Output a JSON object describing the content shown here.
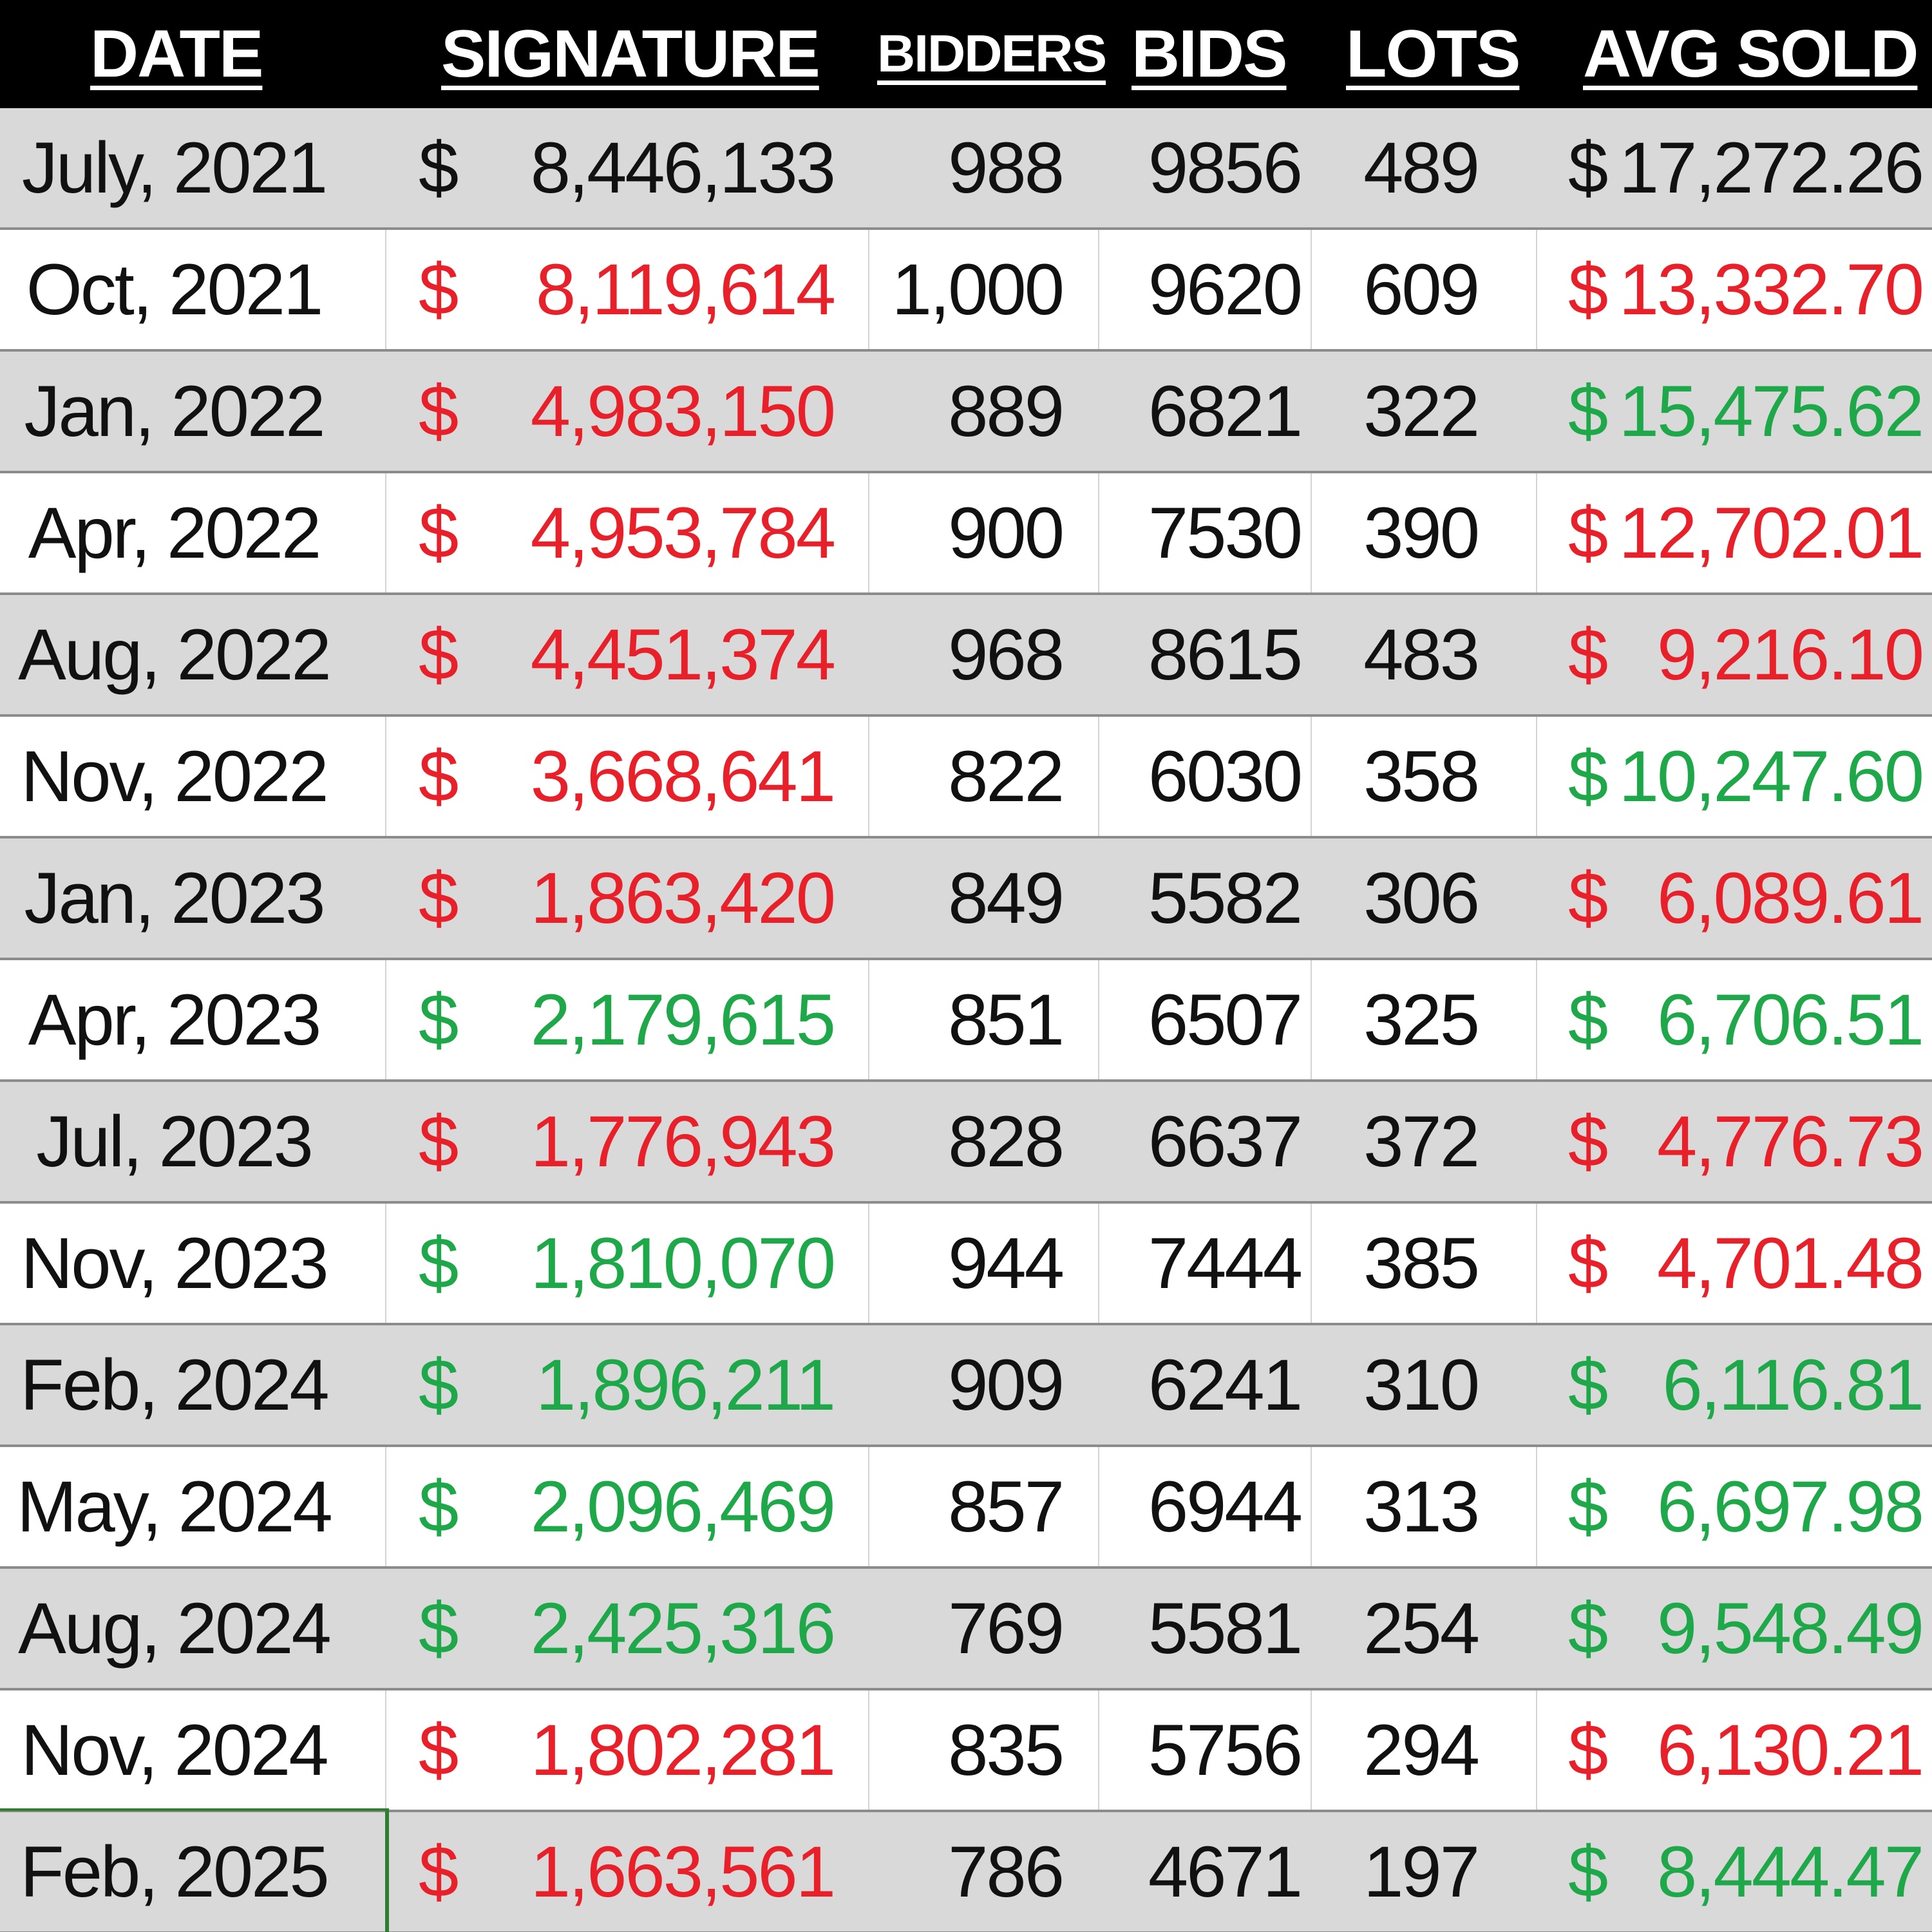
{
  "header": {
    "date": "DATE",
    "signature": "SIGNATURE",
    "bidders": "BIDDERS",
    "bids": "BIDS",
    "lots": "LOTS",
    "avg_sold": "AVG SOLD"
  },
  "colors": {
    "red": "#e8202a",
    "green": "#1ea84a",
    "black": "#111111",
    "header_bg": "#000000",
    "shaded_row": "#d9d9d9"
  },
  "rows": [
    {
      "date": "July, 2021",
      "sig_symbol": "$",
      "signature": "8,446,133",
      "sig_color": "black",
      "bidders": "988",
      "bids": "9856",
      "lots": "489",
      "avg_symbol": "$",
      "avg_sold": "17,272.26",
      "avg_color": "black"
    },
    {
      "date": "Oct, 2021",
      "sig_symbol": "$",
      "signature": "8,119,614",
      "sig_color": "red",
      "bidders": "1,000",
      "bids": "9620",
      "lots": "609",
      "avg_symbol": "$",
      "avg_sold": "13,332.70",
      "avg_color": "red"
    },
    {
      "date": "Jan, 2022",
      "sig_symbol": "$",
      "signature": "4,983,150",
      "sig_color": "red",
      "bidders": "889",
      "bids": "6821",
      "lots": "322",
      "avg_symbol": "$",
      "avg_sold": "15,475.62",
      "avg_color": "green"
    },
    {
      "date": "Apr, 2022",
      "sig_symbol": "$",
      "signature": "4,953,784",
      "sig_color": "red",
      "bidders": "900",
      "bids": "7530",
      "lots": "390",
      "avg_symbol": "$",
      "avg_sold": "12,702.01",
      "avg_color": "red"
    },
    {
      "date": "Aug, 2022",
      "sig_symbol": "$",
      "signature": "4,451,374",
      "sig_color": "red",
      "bidders": "968",
      "bids": "8615",
      "lots": "483",
      "avg_symbol": "$",
      "avg_sold": "9,216.10",
      "avg_color": "red"
    },
    {
      "date": "Nov, 2022",
      "sig_symbol": "$",
      "signature": "3,668,641",
      "sig_color": "red",
      "bidders": "822",
      "bids": "6030",
      "lots": "358",
      "avg_symbol": "$",
      "avg_sold": "10,247.60",
      "avg_color": "green"
    },
    {
      "date": "Jan, 2023",
      "sig_symbol": "$",
      "signature": "1,863,420",
      "sig_color": "red",
      "bidders": "849",
      "bids": "5582",
      "lots": "306",
      "avg_symbol": "$",
      "avg_sold": "6,089.61",
      "avg_color": "red"
    },
    {
      "date": "Apr, 2023",
      "sig_symbol": "$",
      "signature": "2,179,615",
      "sig_color": "green",
      "bidders": "851",
      "bids": "6507",
      "lots": "325",
      "avg_symbol": "$",
      "avg_sold": "6,706.51",
      "avg_color": "green"
    },
    {
      "date": "Jul, 2023",
      "sig_symbol": "$",
      "signature": "1,776,943",
      "sig_color": "red",
      "bidders": "828",
      "bids": "6637",
      "lots": "372",
      "avg_symbol": "$",
      "avg_sold": "4,776.73",
      "avg_color": "red"
    },
    {
      "date": "Nov, 2023",
      "sig_symbol": "$",
      "signature": "1,810,070",
      "sig_color": "green",
      "bidders": "944",
      "bids": "7444",
      "lots": "385",
      "avg_symbol": "$",
      "avg_sold": "4,701.48",
      "avg_color": "red"
    },
    {
      "date": "Feb, 2024",
      "sig_symbol": "$",
      "signature": "1,896,211",
      "sig_color": "green",
      "bidders": "909",
      "bids": "6241",
      "lots": "310",
      "avg_symbol": "$",
      "avg_sold": "6,116.81",
      "avg_color": "green"
    },
    {
      "date": "May, 2024",
      "sig_symbol": "$",
      "signature": "2,096,469",
      "sig_color": "green",
      "bidders": "857",
      "bids": "6944",
      "lots": "313",
      "avg_symbol": "$",
      "avg_sold": "6,697.98",
      "avg_color": "green"
    },
    {
      "date": "Aug, 2024",
      "sig_symbol": "$",
      "signature": "2,425,316",
      "sig_color": "green",
      "bidders": "769",
      "bids": "5581",
      "lots": "254",
      "avg_symbol": "$",
      "avg_sold": "9,548.49",
      "avg_color": "green"
    },
    {
      "date": "Nov, 2024",
      "sig_symbol": "$",
      "signature": "1,802,281",
      "sig_color": "red",
      "bidders": "835",
      "bids": "5756",
      "lots": "294",
      "avg_symbol": "$",
      "avg_sold": "6,130.21",
      "avg_color": "red"
    },
    {
      "date": "Feb, 2025",
      "sig_symbol": "$",
      "signature": "1,663,561",
      "sig_color": "red",
      "bidders": "786",
      "bids": "4671",
      "lots": "197",
      "avg_symbol": "$",
      "avg_sold": "8,444.47",
      "avg_color": "green"
    }
  ]
}
